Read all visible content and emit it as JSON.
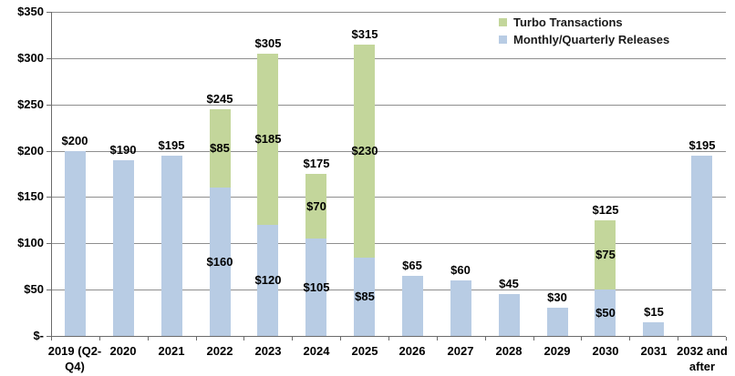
{
  "chart_data": {
    "type": "bar",
    "stacked": true,
    "title": "",
    "xlabel": "",
    "ylabel": "",
    "ylim": [
      0,
      350
    ],
    "ytick_step": 50,
    "ytick_labels": [
      "$-",
      "$50",
      "$100",
      "$150",
      "$200",
      "$250",
      "$300",
      "$350"
    ],
    "grid": true,
    "value_prefix": "$",
    "categories": [
      "2019 (Q2-Q4)",
      "2020",
      "2021",
      "2022",
      "2023",
      "2024",
      "2025",
      "2026",
      "2027",
      "2028",
      "2029",
      "2030",
      "2031",
      "2032 and after"
    ],
    "series": [
      {
        "name": "Monthly/Quarterly Releases",
        "color": "#B8CCE4",
        "values": [
          200,
          190,
          195,
          160,
          120,
          105,
          85,
          65,
          60,
          45,
          30,
          50,
          15,
          195
        ],
        "segment_labels": [
          "",
          "",
          "",
          "$160",
          "$120",
          "$105",
          "$85",
          "",
          "",
          "",
          "",
          "$50",
          "",
          ""
        ]
      },
      {
        "name": "Turbo Transactions",
        "color": "#C3D69B",
        "values": [
          0,
          0,
          0,
          85,
          185,
          70,
          230,
          0,
          0,
          0,
          0,
          75,
          0,
          0
        ],
        "segment_labels": [
          "",
          "",
          "",
          "$85",
          "$185",
          "$70",
          "$230",
          "",
          "",
          "",
          "",
          "$75",
          "",
          ""
        ]
      }
    ],
    "totals": [
      200,
      190,
      195,
      245,
      305,
      175,
      315,
      65,
      60,
      45,
      30,
      125,
      15,
      195
    ],
    "total_labels": [
      "$200",
      "$190",
      "$195",
      "$245",
      "$305",
      "$175",
      "$315",
      "$65",
      "$60",
      "$45",
      "$30",
      "$125",
      "$15",
      "$195"
    ],
    "legend": {
      "position": "top-right",
      "entries": [
        {
          "label": "Turbo Transactions",
          "color": "#C3D69B"
        },
        {
          "label": "Monthly/Quarterly Releases",
          "color": "#B8CCE4"
        }
      ]
    }
  },
  "colors": {
    "background": "#FFFFFF",
    "gridline": "#8E8E8E",
    "axis": "#6B6B6B",
    "text": "#000000"
  }
}
